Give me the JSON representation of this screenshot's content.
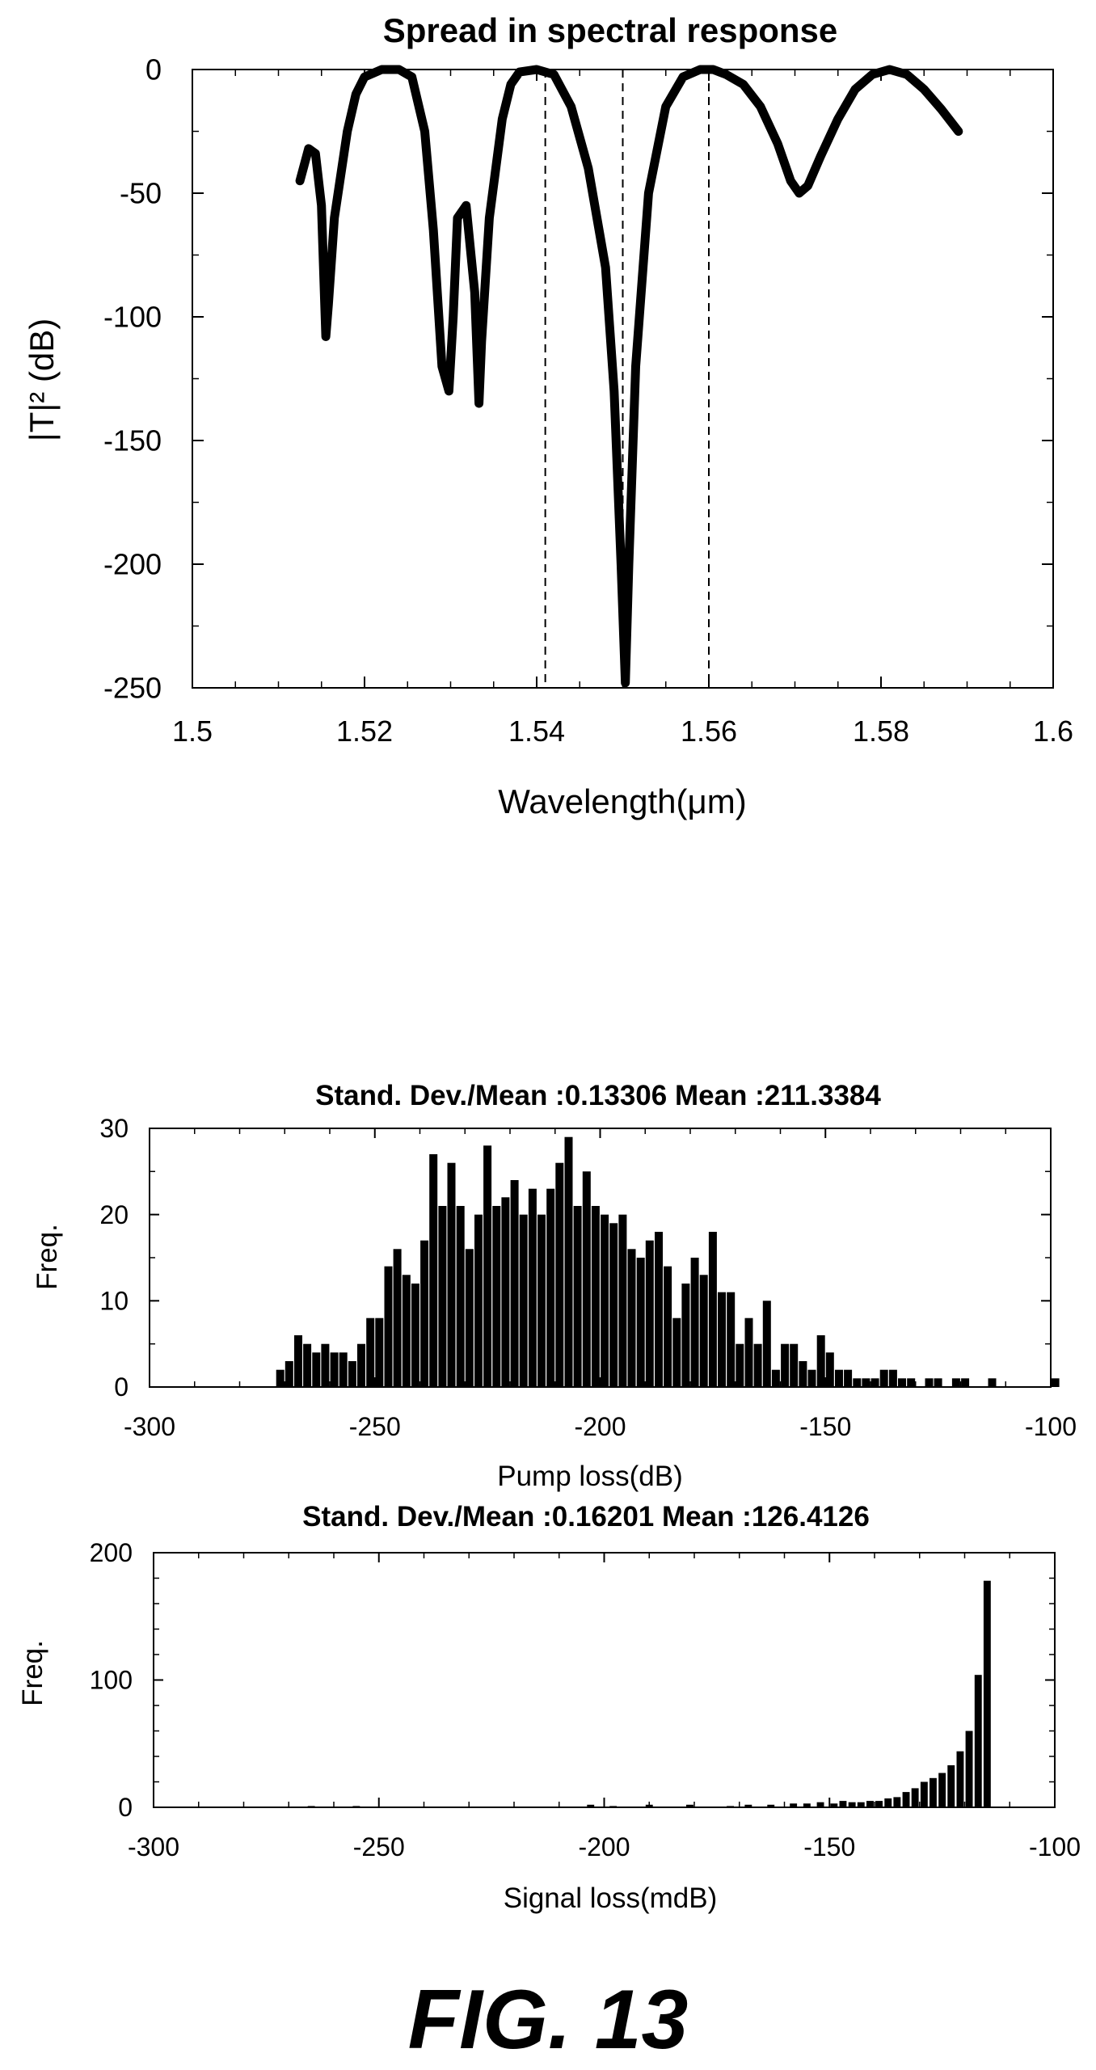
{
  "figure_caption": "FIG. 13",
  "chart_data": [
    {
      "type": "line",
      "title": "Spread in spectral response",
      "xlabel": "Wavelength(μm)",
      "ylabel": "|T|² (dB)",
      "xlim": [
        1.5,
        1.6
      ],
      "ylim": [
        -250,
        0
      ],
      "xticks": [
        "1.5",
        "1.52",
        "1.54",
        "1.56",
        "1.58",
        "1.6"
      ],
      "yticks": [
        "0",
        "-50",
        "-100",
        "-150",
        "-200",
        "-250"
      ],
      "grid": false,
      "vlines": [
        1.541,
        1.55,
        1.56
      ],
      "series": [
        {
          "x": [
            1.5125,
            1.5135,
            1.5143,
            1.515,
            1.5155,
            1.5158,
            1.5165,
            1.518,
            1.519,
            1.52,
            1.522,
            1.524,
            1.5255,
            1.527,
            1.528,
            1.529,
            1.5298,
            1.5303,
            1.5308,
            1.5318,
            1.5328,
            1.5333,
            1.5336,
            1.5345,
            1.536,
            1.537,
            1.538,
            1.54,
            1.542,
            1.544,
            1.546,
            1.548,
            1.549,
            1.5498,
            1.5503,
            1.5507,
            1.5515,
            1.553,
            1.555,
            1.557,
            1.559,
            1.5605,
            1.562,
            1.564,
            1.566,
            1.568,
            1.5695,
            1.5705,
            1.5715,
            1.573,
            1.575,
            1.577,
            1.579,
            1.581,
            1.583,
            1.585,
            1.587,
            1.589
          ],
          "y": [
            -45,
            -32,
            -34,
            -55,
            -108,
            -95,
            -60,
            -25,
            -10,
            -3,
            0,
            0,
            -3,
            -25,
            -65,
            -120,
            -130,
            -100,
            -60,
            -55,
            -90,
            -135,
            -110,
            -60,
            -20,
            -6,
            -1,
            0,
            -2,
            -15,
            -40,
            -80,
            -130,
            -200,
            -248,
            -200,
            -120,
            -50,
            -15,
            -3,
            0,
            0,
            -2,
            -6,
            -15,
            -30,
            -45,
            -50,
            -47,
            -35,
            -20,
            -8,
            -2,
            0,
            -2,
            -8,
            -16,
            -25
          ]
        }
      ]
    },
    {
      "type": "bar",
      "title": "Stand. Dev./Mean :0.13306   Mean :211.3384",
      "xlabel": "Pump loss(dB)",
      "ylabel": "Freq.",
      "xlim": [
        -300,
        -100
      ],
      "ylim": [
        0,
        30
      ],
      "xticks": [
        "-300",
        "-250",
        "-200",
        "-150",
        "-100"
      ],
      "yticks": [
        "30",
        "20",
        "10",
        "0"
      ],
      "bin_width": 1.8,
      "x": [
        -271,
        -269,
        -267,
        -265,
        -263,
        -261,
        -259,
        -257,
        -255,
        -253,
        -251,
        -249,
        -247,
        -245,
        -243,
        -241,
        -239,
        -237,
        -235,
        -233,
        -231,
        -229,
        -227,
        -225,
        -223,
        -221,
        -219,
        -217,
        -215,
        -213,
        -211,
        -209,
        -207,
        -205,
        -203,
        -201,
        -199,
        -197,
        -195,
        -193,
        -191,
        -189,
        -187,
        -185,
        -183,
        -181,
        -179,
        -177,
        -175,
        -173,
        -171,
        -169,
        -167,
        -165,
        -163,
        -161,
        -159,
        -157,
        -155,
        -153,
        -151,
        -149,
        -147,
        -145,
        -143,
        -141,
        -139,
        -137,
        -135,
        -133,
        -131,
        -127,
        -125,
        -121,
        -119,
        -113,
        -99
      ],
      "values": [
        2,
        3,
        6,
        5,
        4,
        5,
        4,
        4,
        3,
        5,
        8,
        8,
        14,
        16,
        13,
        12,
        17,
        27,
        21,
        26,
        21,
        16,
        20,
        28,
        21,
        22,
        24,
        20,
        23,
        20,
        23,
        26,
        29,
        21,
        25,
        21,
        20,
        19,
        20,
        16,
        15,
        17,
        18,
        14,
        8,
        12,
        15,
        13,
        18,
        11,
        11,
        5,
        8,
        5,
        10,
        2,
        5,
        5,
        3,
        2,
        6,
        4,
        2,
        2,
        1,
        1,
        1,
        2,
        2,
        1,
        1,
        1,
        1,
        1,
        1,
        1,
        1
      ]
    },
    {
      "type": "bar",
      "title": "Stand. Dev./Mean :0.16201  Mean :126.4126",
      "xlabel": "Signal loss(mdB)",
      "ylabel": "Freq.",
      "xlim": [
        -300,
        -100
      ],
      "ylim": [
        0,
        200
      ],
      "xticks": [
        "-300",
        "-250",
        "-200",
        "-150",
        "-100"
      ],
      "yticks": [
        "200",
        "100",
        "0"
      ],
      "bin_width": 1.6,
      "x": [
        -265,
        -255,
        -203,
        -198,
        -190,
        -181,
        -172,
        -168,
        -163,
        -158,
        -155,
        -152,
        -149,
        -147,
        -145,
        -143,
        -141,
        -139,
        -137,
        -135,
        -133,
        -131,
        -129,
        -127,
        -125,
        -123,
        -121,
        -119,
        -117,
        -115
      ],
      "values": [
        1,
        1,
        2,
        1,
        2,
        2,
        1,
        2,
        2,
        3,
        3,
        4,
        3,
        5,
        4,
        4,
        5,
        5,
        7,
        8,
        12,
        15,
        20,
        23,
        27,
        33,
        44,
        60,
        104,
        178
      ]
    }
  ]
}
